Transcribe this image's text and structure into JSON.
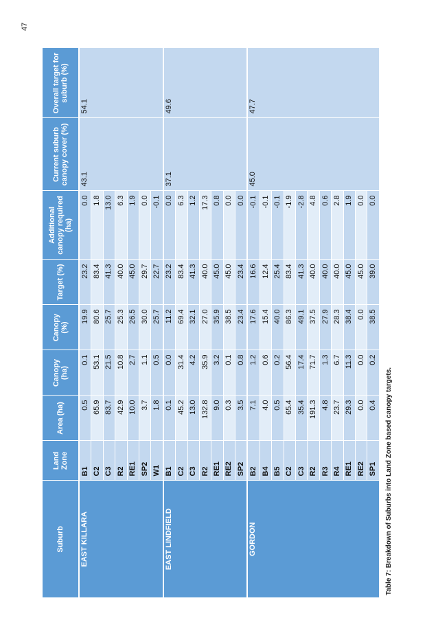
{
  "caption": "Table 7: Breakdown of Suburbs into Land Zone based canopy targets.",
  "page_number": "47",
  "headers": {
    "suburb": "Suburb",
    "land_zone": "Land Zone",
    "area": "Area (ha)",
    "canopy_ha": "Canopy (ha)",
    "canopy_pct": "Canopy (%)",
    "target": "Target (%)",
    "additional": "Additional canopy required (ha)",
    "current": "Current suburb canopy cover (%)",
    "overall": "Overall target for suburb (%)"
  },
  "groups": [
    {
      "suburb": "EAST KILLARA",
      "current": "43.1",
      "overall": "54.1",
      "rows": [
        {
          "zone": "B1",
          "area": "0.5",
          "canopy_ha": "0.1",
          "canopy_pct": "19.9",
          "target": "23.2",
          "additional": "0.0"
        },
        {
          "zone": "C2",
          "area": "65.9",
          "canopy_ha": "53.1",
          "canopy_pct": "80.6",
          "target": "83.4",
          "additional": "1.8"
        },
        {
          "zone": "C3",
          "area": "83.7",
          "canopy_ha": "21.5",
          "canopy_pct": "25.7",
          "target": "41.3",
          "additional": "13.0"
        },
        {
          "zone": "R2",
          "area": "42.9",
          "canopy_ha": "10.8",
          "canopy_pct": "25.3",
          "target": "40.0",
          "additional": "6.3"
        },
        {
          "zone": "RE1",
          "area": "10.0",
          "canopy_ha": "2.7",
          "canopy_pct": "26.5",
          "target": "45.0",
          "additional": "1.9"
        },
        {
          "zone": "SP2",
          "area": "3.7",
          "canopy_ha": "1.1",
          "canopy_pct": "30.0",
          "target": "29.7",
          "additional": "0.0"
        },
        {
          "zone": "W1",
          "area": "1.8",
          "canopy_ha": "0.5",
          "canopy_pct": "25.7",
          "target": "22.7",
          "additional": "-0.1"
        }
      ]
    },
    {
      "suburb": "EAST LINDFIELD",
      "current": "37.1",
      "overall": "49.6",
      "rows": [
        {
          "zone": "B1",
          "area": "0.1",
          "canopy_ha": "0.0",
          "canopy_pct": "11.2",
          "target": "23.2",
          "additional": "0.0"
        },
        {
          "zone": "C2",
          "area": "45.2",
          "canopy_ha": "31.4",
          "canopy_pct": "69.4",
          "target": "83.4",
          "additional": "6.3"
        },
        {
          "zone": "C3",
          "area": "13.0",
          "canopy_ha": "4.2",
          "canopy_pct": "32.1",
          "target": "41.3",
          "additional": "1.2"
        },
        {
          "zone": "R2",
          "area": "132.8",
          "canopy_ha": "35.9",
          "canopy_pct": "27.0",
          "target": "40.0",
          "additional": "17.3"
        },
        {
          "zone": "RE1",
          "area": "9.0",
          "canopy_ha": "3.2",
          "canopy_pct": "35.9",
          "target": "45.0",
          "additional": "0.8"
        },
        {
          "zone": "RE2",
          "area": "0.3",
          "canopy_ha": "0.1",
          "canopy_pct": "38.5",
          "target": "45.0",
          "additional": "0.0"
        },
        {
          "zone": "SP2",
          "area": "3.5",
          "canopy_ha": "0.8",
          "canopy_pct": "23.4",
          "target": "23.4",
          "additional": "0.0"
        }
      ]
    },
    {
      "suburb": "GORDON",
      "current": "45.0",
      "overall": "47.7",
      "rows": [
        {
          "zone": "B2",
          "area": "7.1",
          "canopy_ha": "1.2",
          "canopy_pct": "17.6",
          "target": "16.6",
          "additional": "-0.1"
        },
        {
          "zone": "B4",
          "area": "4.0",
          "canopy_ha": "0.6",
          "canopy_pct": "15.4",
          "target": "12.4",
          "additional": "-0.1"
        },
        {
          "zone": "B5",
          "area": "0.5",
          "canopy_ha": "0.2",
          "canopy_pct": "40.0",
          "target": "25.4",
          "additional": "-0.1"
        },
        {
          "zone": "C2",
          "area": "65.4",
          "canopy_ha": "56.4",
          "canopy_pct": "86.3",
          "target": "83.4",
          "additional": "-1.9"
        },
        {
          "zone": "C3",
          "area": "35.4",
          "canopy_ha": "17.4",
          "canopy_pct": "49.1",
          "target": "41.3",
          "additional": "-2.8"
        },
        {
          "zone": "R2",
          "area": "191.3",
          "canopy_ha": "71.7",
          "canopy_pct": "37.5",
          "target": "40.0",
          "additional": "4.8"
        },
        {
          "zone": "R3",
          "area": "4.8",
          "canopy_ha": "1.3",
          "canopy_pct": "27.9",
          "target": "40.0",
          "additional": "0.6"
        },
        {
          "zone": "R4",
          "area": "23.7",
          "canopy_ha": "6.7",
          "canopy_pct": "28.3",
          "target": "40.0",
          "additional": "2.8"
        },
        {
          "zone": "RE1",
          "area": "29.3",
          "canopy_ha": "11.3",
          "canopy_pct": "38.4",
          "target": "45.0",
          "additional": "1.9"
        },
        {
          "zone": "RE2",
          "area": "0.0",
          "canopy_ha": "0.0",
          "canopy_pct": "0.0",
          "target": "45.0",
          "additional": "0.0"
        },
        {
          "zone": "SP1",
          "area": "0.4",
          "canopy_ha": "0.2",
          "canopy_pct": "38.5",
          "target": "39.0",
          "additional": "0.0"
        }
      ]
    }
  ]
}
